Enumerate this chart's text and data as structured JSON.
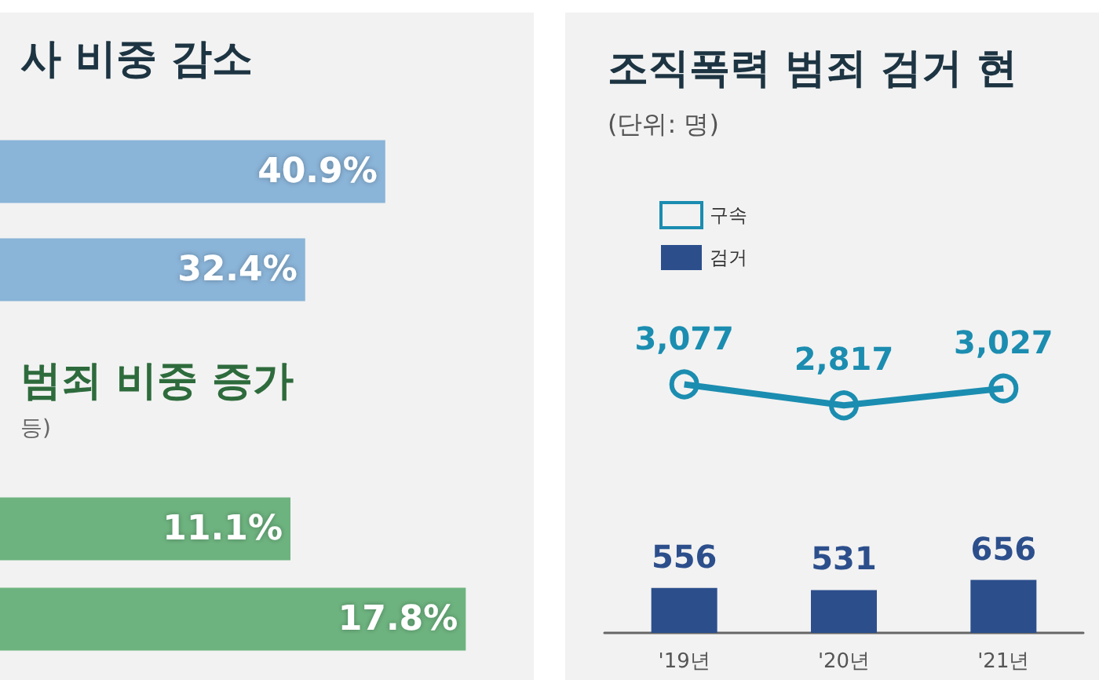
{
  "chart_data": [
    {
      "type": "bar",
      "orientation": "horizontal",
      "title": "사 비중 감소",
      "categories": [
        null,
        null
      ],
      "values": [
        40.9,
        32.4
      ],
      "value_labels": [
        "40.9%",
        "32.4%"
      ],
      "color": "#8ab4d8",
      "tick_labels": false
    },
    {
      "type": "bar",
      "orientation": "horizontal",
      "title": "범죄 비중 증가",
      "subtitle": "등)",
      "categories": [
        null,
        null
      ],
      "values": [
        11.1,
        17.8
      ],
      "value_labels": [
        "11.1%",
        "17.8%"
      ],
      "color": "#6db37f",
      "tick_labels": false
    },
    {
      "type": "bar",
      "title": "조직폭력 범죄 검거 현",
      "subtitle": "(단위: 명)",
      "categories": [
        "'19년",
        "'20년",
        "'21년"
      ],
      "legend": "top left",
      "marker": "circle",
      "tick_labels": "x",
      "series": [
        {
          "name": "구속",
          "type": "line",
          "color": "#1b8db0",
          "values": [
            3077,
            2817,
            3027
          ],
          "value_labels": [
            "3,077",
            "2,817",
            "3,027"
          ]
        },
        {
          "name": "검거",
          "type": "bar",
          "color": "#2c4f8c",
          "values": [
            556,
            531,
            656
          ],
          "value_labels": [
            "556",
            "531",
            "656"
          ]
        }
      ]
    }
  ]
}
